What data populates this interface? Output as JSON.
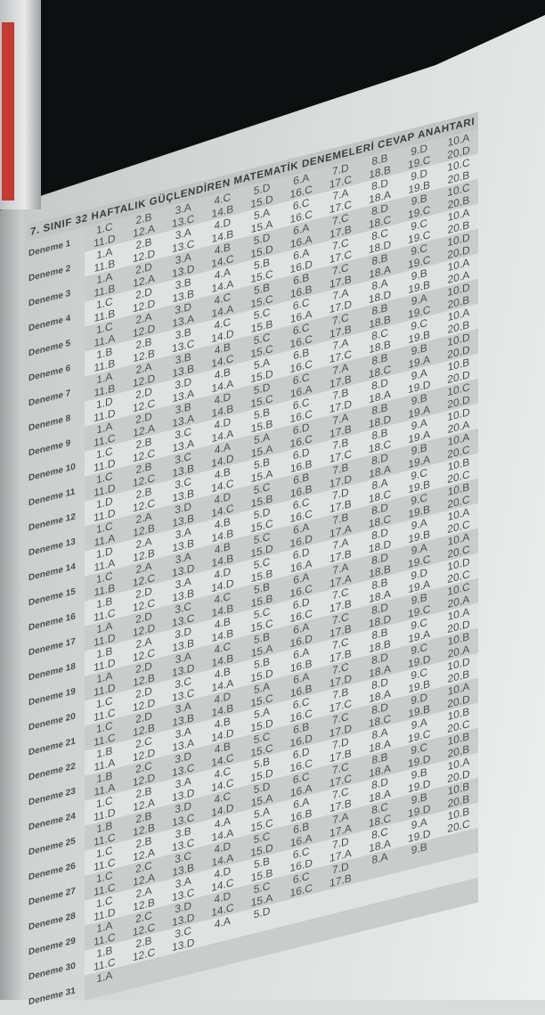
{
  "title": "7. SINIF 32 HAFTALIK GÜÇLENDİREN MATEMATİK DENEMELERİ CEVAP ANAHTARI",
  "rows": [
    {
      "label": "Deneme 1",
      "top": [
        "1.C",
        "2.B",
        "3.A",
        "4.C",
        "5.D",
        "6.A",
        "7.D",
        "8.B",
        "9.D",
        "10.A"
      ],
      "bottom": [
        "11.D",
        "12.A",
        "13.C",
        "14.B",
        "15.D",
        "16.C",
        "17.C",
        "18.B",
        "19.C",
        "20.D"
      ]
    },
    {
      "label": "Deneme 2",
      "top": [
        "1.A",
        "2.B",
        "3.A",
        "4.D",
        "5.A",
        "6.C",
        "7.A",
        "8.D",
        "9.D",
        "10.C"
      ],
      "bottom": [
        "11.B",
        "12.D",
        "13.C",
        "14.B",
        "15.A",
        "16.C",
        "17.C",
        "18.A",
        "19.B",
        "20.B"
      ]
    },
    {
      "label": "Deneme 3",
      "top": [
        "1.A",
        "2.D",
        "3.A",
        "4.B",
        "5.D",
        "6.A",
        "7.C",
        "8.D",
        "9.B",
        "10.C"
      ],
      "bottom": [
        "11.B",
        "12.A",
        "13.D",
        "14.C",
        "15.D",
        "16.A",
        "17.B",
        "18.C",
        "19.C",
        "20.B"
      ]
    },
    {
      "label": "Deneme 4",
      "top": [
        "1.C",
        "2.D",
        "3.B",
        "4.A",
        "5.B",
        "6.A",
        "7.C",
        "8.C",
        "9.C",
        "10.A"
      ],
      "bottom": [
        "11.B",
        "12.D",
        "13.B",
        "14.A",
        "15.C",
        "16.D",
        "17.C",
        "18.D",
        "19.C",
        "20.B"
      ]
    },
    {
      "label": "Deneme 5",
      "top": [
        "1.C",
        "2.A",
        "3.D",
        "4.C",
        "5.B",
        "6.B",
        "7.C",
        "8.B",
        "9.C",
        "10.D"
      ],
      "bottom": [
        "11.A",
        "12.D",
        "13.A",
        "14.A",
        "15.C",
        "16.B",
        "17.B",
        "18.A",
        "19.C",
        "20.D"
      ]
    },
    {
      "label": "Deneme 6",
      "top": [
        "1.B",
        "2.B",
        "3.B",
        "4.C",
        "5.C",
        "6.C",
        "7.A",
        "8.A",
        "9.B",
        "10.A"
      ],
      "bottom": [
        "11.B",
        "12.B",
        "13.C",
        "14.D",
        "15.B",
        "16.A",
        "17.D",
        "18.D",
        "19.B",
        "20.A"
      ]
    },
    {
      "label": "Deneme 7",
      "top": [
        "1.A",
        "2.A",
        "3.B",
        "4.B",
        "5.C",
        "6.C",
        "7.C",
        "8.B",
        "9.A",
        "10.D"
      ],
      "bottom": [
        "11.B",
        "12.D",
        "13.B",
        "14.C",
        "15.C",
        "16.C",
        "17.B",
        "18.B",
        "19.C",
        "20.B"
      ]
    },
    {
      "label": "Deneme 8",
      "top": [
        "1.D",
        "2.D",
        "3.D",
        "4.B",
        "5.A",
        "6.B",
        "7.A",
        "8.C",
        "9.C",
        "10.A"
      ],
      "bottom": [
        "11.D",
        "12.C",
        "13.A",
        "14.A",
        "15.D",
        "16.C",
        "17.C",
        "18.B",
        "19.B",
        "20.B"
      ]
    },
    {
      "label": "Deneme 9",
      "top": [
        "1.A",
        "2.D",
        "3.B",
        "4.D",
        "5.D",
        "6.C",
        "7.A",
        "8.B",
        "9.B",
        "10.D"
      ],
      "bottom": [
        "11.C",
        "12.A",
        "13.A",
        "14.B",
        "15.C",
        "16.A",
        "17.B",
        "18.C",
        "19.A",
        "20.D"
      ]
    },
    {
      "label": "Deneme 10",
      "top": [
        "1.C",
        "2.B",
        "3.C",
        "4.D",
        "5.B",
        "6.C",
        "7.B",
        "8.D",
        "9.A",
        "10.B"
      ],
      "bottom": [
        "11.D",
        "12.C",
        "13.A",
        "14.A",
        "15.B",
        "16.C",
        "17.D",
        "18.A",
        "19.D",
        "20.D"
      ]
    },
    {
      "label": "Deneme 11",
      "top": [
        "1.C",
        "2.B",
        "3.C",
        "4.A",
        "5.A",
        "6.D",
        "7.A",
        "8.B",
        "9.B",
        "10.C"
      ],
      "bottom": [
        "11.D",
        "12.C",
        "13.B",
        "14.D",
        "15.A",
        "16.C",
        "17.B",
        "18.D",
        "19.A",
        "20.D"
      ]
    },
    {
      "label": "Deneme 12",
      "top": [
        "1.D",
        "2.B",
        "3.C",
        "4.B",
        "5.B",
        "6.D",
        "7.B",
        "8.B",
        "9.A",
        "10.D"
      ],
      "bottom": [
        "11.D",
        "12.C",
        "13.B",
        "14.C",
        "15.A",
        "16.B",
        "17.C",
        "18.C",
        "19.A",
        "20.A"
      ]
    },
    {
      "label": "Deneme 13",
      "top": [
        "1.C",
        "2.A",
        "3.D",
        "4.D",
        "5.C",
        "6.B",
        "7.B",
        "8.D",
        "9.B",
        "10.A"
      ],
      "bottom": [
        "11.A",
        "12.B",
        "13.B",
        "14.C",
        "15.B",
        "16.B",
        "17.D",
        "18.A",
        "19.A",
        "20.C"
      ]
    },
    {
      "label": "Deneme 14",
      "top": [
        "1.D",
        "2.A",
        "3.A",
        "4.B",
        "5.D",
        "6.C",
        "7.D",
        "8.A",
        "9.C",
        "10.B"
      ],
      "bottom": [
        "11.A",
        "12.B",
        "13.B",
        "14.B",
        "15.C",
        "16.C",
        "17.B",
        "18.C",
        "19.B",
        "20.C"
      ]
    },
    {
      "label": "Deneme 15",
      "top": [
        "1.C",
        "2.A",
        "3.A",
        "4.B",
        "5.C",
        "6.A",
        "7.B",
        "8.D",
        "9.C",
        "10.B"
      ],
      "bottom": [
        "11.B",
        "12.C",
        "13.D",
        "14.B",
        "15.D",
        "16.D",
        "17.A",
        "18.C",
        "19.B",
        "20.C"
      ]
    },
    {
      "label": "Deneme 16",
      "top": [
        "1.B",
        "2.D",
        "3.A",
        "4.D",
        "5.C",
        "6.D",
        "7.A",
        "8.D",
        "9.A",
        "10.A"
      ],
      "bottom": [
        "11.C",
        "12.C",
        "13.B",
        "14.D",
        "15.B",
        "16.A",
        "17.B",
        "18.D",
        "19.B",
        "20.C"
      ]
    },
    {
      "label": "Deneme 17",
      "top": [
        "1.A",
        "2.D",
        "3.C",
        "4.C",
        "5.B",
        "6.A",
        "7.A",
        "8.D",
        "9.A",
        "10.A"
      ],
      "bottom": [
        "11.D",
        "12.D",
        "13.C",
        "14.B",
        "15.B",
        "16.C",
        "17.A",
        "18.B",
        "19.C",
        "20.C"
      ]
    },
    {
      "label": "Deneme 18",
      "top": [
        "1.B",
        "2.A",
        "3.D",
        "4.B",
        "5.C",
        "6.D",
        "7.C",
        "8.B",
        "9.D",
        "10.D"
      ],
      "bottom": [
        "11.D",
        "12.C",
        "13.B",
        "14.B",
        "15.C",
        "16.C",
        "17.B",
        "18.A",
        "19.A",
        "20.C"
      ]
    },
    {
      "label": "Deneme 19",
      "top": [
        "1.A",
        "2.D",
        "3.A",
        "4.C",
        "5.B",
        "6.A",
        "7.C",
        "8.D",
        "9.B",
        "10.C"
      ],
      "bottom": [
        "11.D",
        "12.B",
        "13.D",
        "14.B",
        "15.A",
        "16.D",
        "17.B",
        "18.D",
        "19.C",
        "20.A"
      ]
    },
    {
      "label": "Deneme 20",
      "top": [
        "1.C",
        "2.D",
        "3.C",
        "4.B",
        "5.B",
        "6.A",
        "7.C",
        "8.B",
        "9.C",
        "10.A"
      ],
      "bottom": [
        "11.C",
        "12.D",
        "13.C",
        "14.A",
        "15.D",
        "16.B",
        "17.B",
        "18.B",
        "19.A",
        "20.D"
      ]
    },
    {
      "label": "Deneme 21",
      "top": [
        "1.C",
        "2.D",
        "3.A",
        "4.D",
        "5.A",
        "6.A",
        "7.C",
        "8.D",
        "9.C",
        "10.B"
      ],
      "bottom": [
        "11.C",
        "12.B",
        "13.B",
        "14.B",
        "15.C",
        "16.B",
        "17.D",
        "18.A",
        "19.D",
        "20.A"
      ]
    },
    {
      "label": "Deneme 22",
      "top": [
        "1.B",
        "2.C",
        "3.A",
        "4.B",
        "5.A",
        "6.C",
        "7.B",
        "8.D",
        "9.C",
        "10.D"
      ],
      "bottom": [
        "11.A",
        "12.D",
        "13.A",
        "14.D",
        "15.D",
        "16.C",
        "17.C",
        "18.A",
        "19.B",
        "20.B"
      ]
    },
    {
      "label": "Deneme 23",
      "top": [
        "1.B",
        "2.C",
        "3.D",
        "4.B",
        "5.C",
        "6.B",
        "7.C",
        "8.D",
        "9.D",
        "10.A"
      ],
      "bottom": [
        "11.A",
        "12.D",
        "13.C",
        "14.C",
        "15.C",
        "16.D",
        "17.D",
        "18.C",
        "19.B",
        "20.D"
      ]
    },
    {
      "label": "Deneme 24",
      "top": [
        "1.C",
        "2.B",
        "3.A",
        "4.C",
        "5.B",
        "6.D",
        "7.D",
        "8.A",
        "9.A",
        "10.B"
      ],
      "bottom": [
        "11.D",
        "12.A",
        "13.D",
        "14.C",
        "15.D",
        "16.C",
        "17.B",
        "18.A",
        "19.C",
        "20.C"
      ]
    },
    {
      "label": "Deneme 25",
      "top": [
        "1.B",
        "2.B",
        "3.D",
        "4.C",
        "5.D",
        "6.C",
        "7.C",
        "8.B",
        "9.C",
        "10.B"
      ],
      "bottom": [
        "11.C",
        "12.B",
        "13.C",
        "14.D",
        "15.A",
        "16.A",
        "17.C",
        "18.A",
        "19.D",
        "20.B"
      ]
    },
    {
      "label": "Deneme 26",
      "top": [
        "1.C",
        "2.B",
        "3.B",
        "4.A",
        "5.A",
        "6.A",
        "7.C",
        "8.D",
        "9.B",
        "10.A"
      ],
      "bottom": [
        "11.C",
        "12.A",
        "13.C",
        "14.A",
        "15.C",
        "16.B",
        "17.B",
        "18.A",
        "19.D",
        "20.D"
      ]
    },
    {
      "label": "Deneme 27",
      "top": [
        "1.C",
        "2.C",
        "3.C",
        "4.D",
        "5.C",
        "6.B",
        "7.A",
        "8.C",
        "9.B",
        "10.B"
      ],
      "bottom": [
        "11.C",
        "12.A",
        "13.B",
        "14.A",
        "15.D",
        "16.A",
        "17.A",
        "18.C",
        "19.D",
        "20.B"
      ]
    },
    {
      "label": "Deneme 28",
      "top": [
        "1.C",
        "2.A",
        "3.A",
        "4.D",
        "5.B",
        "6.C",
        "7.D",
        "8.C",
        "9.A",
        "10.B"
      ],
      "bottom": [
        "11.D",
        "12.B",
        "13.C",
        "14.C",
        "15.B",
        "16.D",
        "17.A",
        "18.A",
        "19.D",
        "20.C"
      ]
    },
    {
      "label": "Deneme 29",
      "top": [
        "1.A",
        "2.C",
        "3.D",
        "4.D",
        "5.C",
        "6.C",
        "7.D",
        "8.A",
        "9.B",
        ""
      ],
      "bottom": [
        "11.C",
        "12.C",
        "13.D",
        "14.C",
        "15.A",
        "16.C",
        "17.B",
        "",
        "",
        ""
      ]
    },
    {
      "label": "Deneme 30",
      "top": [
        "1.B",
        "2.B",
        "3.C",
        "4.A",
        "5.D",
        "",
        "",
        "",
        "",
        ""
      ],
      "bottom": [
        "11.C",
        "12.C",
        "13.D",
        "",
        "",
        "",
        "",
        "",
        "",
        ""
      ]
    },
    {
      "label": "Deneme 31",
      "top": [
        "1.A",
        "",
        "",
        "",
        "",
        "",
        "",
        "",
        "",
        ""
      ],
      "bottom": [
        "",
        "",
        "",
        "",
        "",
        "",
        "",
        "",
        "",
        ""
      ]
    }
  ]
}
